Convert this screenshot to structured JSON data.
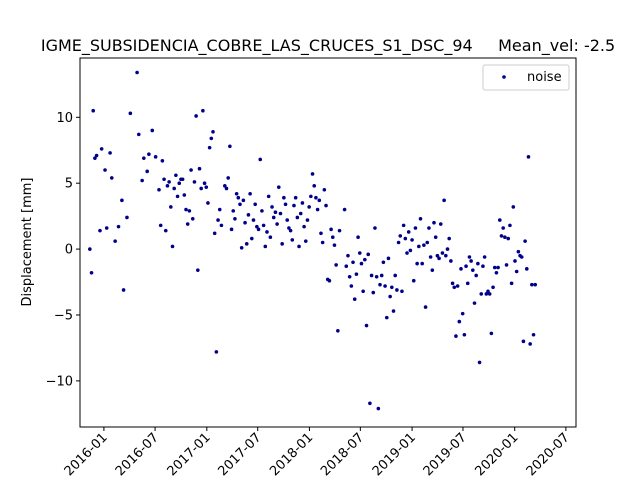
{
  "chart_data": {
    "type": "scatter",
    "title": "IGME_SUBSIDENCIA_COBRE_LAS_CRUCES_S1_DSC_94     Mean_vel: -2.5",
    "xlabel": "",
    "ylabel": "Displacement [mm]",
    "ylim": [
      -13.5,
      14.5
    ],
    "xlim": [
      "2015-10-08",
      "2020-08-06"
    ],
    "grid": false,
    "legend_position": "top-right",
    "yticks": [
      -10,
      -5,
      0,
      5,
      10
    ],
    "xticks": [
      "2016-01",
      "2016-07",
      "2017-01",
      "2017-07",
      "2018-01",
      "2018-07",
      "2019-01",
      "2019-07",
      "2020-01",
      "2020-07"
    ],
    "series": [
      {
        "name": "noise",
        "color": "#00008b",
        "points": [
          [
            "2015-11-12",
            0.0
          ],
          [
            "2015-11-18",
            -1.8
          ],
          [
            "2015-11-24",
            10.5
          ],
          [
            "2015-11-30",
            6.9
          ],
          [
            "2015-12-06",
            7.1
          ],
          [
            "2015-12-18",
            1.4
          ],
          [
            "2015-12-24",
            7.6
          ],
          [
            "2016-01-05",
            6.0
          ],
          [
            "2016-01-11",
            1.6
          ],
          [
            "2016-01-23",
            7.3
          ],
          [
            "2016-01-29",
            5.4
          ],
          [
            "2016-02-10",
            0.6
          ],
          [
            "2016-02-22",
            1.7
          ],
          [
            "2016-03-05",
            3.7
          ],
          [
            "2016-03-11",
            -3.1
          ],
          [
            "2016-03-23",
            2.4
          ],
          [
            "2016-04-04",
            10.3
          ],
          [
            "2016-04-28",
            13.4
          ],
          [
            "2016-05-04",
            8.7
          ],
          [
            "2016-05-16",
            5.2
          ],
          [
            "2016-05-22",
            6.9
          ],
          [
            "2016-06-03",
            5.9
          ],
          [
            "2016-06-09",
            7.2
          ],
          [
            "2016-06-21",
            9.0
          ],
          [
            "2016-07-03",
            7.0
          ],
          [
            "2016-07-15",
            4.5
          ],
          [
            "2016-07-21",
            1.8
          ],
          [
            "2016-07-27",
            6.7
          ],
          [
            "2016-08-02",
            5.3
          ],
          [
            "2016-08-08",
            1.4
          ],
          [
            "2016-08-14",
            4.8
          ],
          [
            "2016-08-20",
            5.1
          ],
          [
            "2016-08-26",
            3.2
          ],
          [
            "2016-09-01",
            0.2
          ],
          [
            "2016-09-07",
            4.6
          ],
          [
            "2016-09-13",
            5.6
          ],
          [
            "2016-09-19",
            4.0
          ],
          [
            "2016-09-25",
            5.0
          ],
          [
            "2016-10-01",
            5.3
          ],
          [
            "2016-10-07",
            5.3
          ],
          [
            "2016-10-13",
            4.1
          ],
          [
            "2016-10-19",
            3.0
          ],
          [
            "2016-10-25",
            1.9
          ],
          [
            "2016-10-31",
            2.9
          ],
          [
            "2016-11-06",
            6.0
          ],
          [
            "2016-11-12",
            2.3
          ],
          [
            "2016-11-18",
            5.1
          ],
          [
            "2016-11-24",
            10.1
          ],
          [
            "2016-11-30",
            -1.6
          ],
          [
            "2016-12-06",
            6.1
          ],
          [
            "2016-12-12",
            4.6
          ],
          [
            "2016-12-18",
            10.5
          ],
          [
            "2016-12-24",
            5.0
          ],
          [
            "2016-12-30",
            4.7
          ],
          [
            "2017-01-05",
            3.5
          ],
          [
            "2017-01-11",
            7.7
          ],
          [
            "2017-01-17",
            8.4
          ],
          [
            "2017-01-23",
            8.9
          ],
          [
            "2017-01-29",
            1.2
          ],
          [
            "2017-02-04",
            -7.8
          ],
          [
            "2017-02-10",
            2.2
          ],
          [
            "2017-02-16",
            3.0
          ],
          [
            "2017-02-22",
            1.8
          ],
          [
            "2017-03-06",
            4.8
          ],
          [
            "2017-03-12",
            4.6
          ],
          [
            "2017-03-18",
            5.4
          ],
          [
            "2017-03-24",
            7.8
          ],
          [
            "2017-03-30",
            1.5
          ],
          [
            "2017-04-05",
            2.9
          ],
          [
            "2017-04-11",
            2.3
          ],
          [
            "2017-04-17",
            4.2
          ],
          [
            "2017-04-23",
            3.9
          ],
          [
            "2017-04-29",
            3.4
          ],
          [
            "2017-05-05",
            0.1
          ],
          [
            "2017-05-11",
            3.7
          ],
          [
            "2017-05-17",
            2.0
          ],
          [
            "2017-05-23",
            0.4
          ],
          [
            "2017-05-29",
            2.6
          ],
          [
            "2017-06-04",
            4.2
          ],
          [
            "2017-06-10",
            0.8
          ],
          [
            "2017-06-16",
            2.2
          ],
          [
            "2017-06-22",
            3.4
          ],
          [
            "2017-06-28",
            1.7
          ],
          [
            "2017-07-04",
            1.5
          ],
          [
            "2017-07-10",
            6.8
          ],
          [
            "2017-07-16",
            2.9
          ],
          [
            "2017-07-22",
            1.8
          ],
          [
            "2017-07-28",
            0.2
          ],
          [
            "2017-08-03",
            1.3
          ],
          [
            "2017-08-09",
            4.0
          ],
          [
            "2017-08-15",
            0.9
          ],
          [
            "2017-08-21",
            3.2
          ],
          [
            "2017-08-27",
            2.4
          ],
          [
            "2017-09-02",
            2.8
          ],
          [
            "2017-09-08",
            1.9
          ],
          [
            "2017-09-14",
            4.7
          ],
          [
            "2017-09-20",
            2.7
          ],
          [
            "2017-09-26",
            0.4
          ],
          [
            "2017-10-02",
            3.9
          ],
          [
            "2017-10-08",
            3.4
          ],
          [
            "2017-10-14",
            2.2
          ],
          [
            "2017-10-20",
            1.6
          ],
          [
            "2017-10-26",
            1.4
          ],
          [
            "2017-11-01",
            0.7
          ],
          [
            "2017-11-07",
            3.3
          ],
          [
            "2017-11-13",
            3.9
          ],
          [
            "2017-11-19",
            2.4
          ],
          [
            "2017-11-25",
            0.2
          ],
          [
            "2017-12-01",
            2.7
          ],
          [
            "2017-12-07",
            3.5
          ],
          [
            "2017-12-13",
            1.7
          ],
          [
            "2017-12-19",
            0.6
          ],
          [
            "2017-12-25",
            2.2
          ],
          [
            "2017-12-31",
            3.2
          ],
          [
            "2018-01-06",
            4.0
          ],
          [
            "2018-01-12",
            5.7
          ],
          [
            "2018-01-18",
            4.8
          ],
          [
            "2018-01-24",
            3.9
          ],
          [
            "2018-01-30",
            3.0
          ],
          [
            "2018-02-05",
            3.7
          ],
          [
            "2018-02-11",
            1.2
          ],
          [
            "2018-02-17",
            0.5
          ],
          [
            "2018-02-23",
            4.5
          ],
          [
            "2018-03-01",
            3.3
          ],
          [
            "2018-03-07",
            -2.3
          ],
          [
            "2018-03-13",
            -2.4
          ],
          [
            "2018-03-19",
            1.5
          ],
          [
            "2018-03-25",
            0.9
          ],
          [
            "2018-03-31",
            0.3
          ],
          [
            "2018-04-06",
            -1.2
          ],
          [
            "2018-04-12",
            -6.2
          ],
          [
            "2018-04-18",
            1.4
          ],
          [
            "2018-05-06",
            3.0
          ],
          [
            "2018-05-12",
            -1.3
          ],
          [
            "2018-05-18",
            -0.5
          ],
          [
            "2018-05-24",
            -2.1
          ],
          [
            "2018-05-30",
            -2.8
          ],
          [
            "2018-06-05",
            -1.0
          ],
          [
            "2018-06-11",
            -3.8
          ],
          [
            "2018-06-17",
            -1.9
          ],
          [
            "2018-06-23",
            0.9
          ],
          [
            "2018-06-29",
            -0.3
          ],
          [
            "2018-07-05",
            -1.1
          ],
          [
            "2018-07-11",
            -3.2
          ],
          [
            "2018-07-17",
            -0.8
          ],
          [
            "2018-07-23",
            -5.8
          ],
          [
            "2018-07-29",
            -0.4
          ],
          [
            "2018-08-04",
            -11.7
          ],
          [
            "2018-08-10",
            -2.0
          ],
          [
            "2018-08-16",
            -3.3
          ],
          [
            "2018-08-22",
            1.6
          ],
          [
            "2018-08-28",
            -2.1
          ],
          [
            "2018-09-03",
            -12.1
          ],
          [
            "2018-09-09",
            -2.7
          ],
          [
            "2018-09-15",
            -2.0
          ],
          [
            "2018-09-21",
            -1.0
          ],
          [
            "2018-09-27",
            -2.8
          ],
          [
            "2018-10-03",
            -5.2
          ],
          [
            "2018-10-09",
            -0.7
          ],
          [
            "2018-10-15",
            -3.6
          ],
          [
            "2018-10-21",
            -2.9
          ],
          [
            "2018-10-27",
            -4.7
          ],
          [
            "2018-11-02",
            -2.0
          ],
          [
            "2018-11-08",
            -3.1
          ],
          [
            "2018-11-14",
            0.5
          ],
          [
            "2018-11-20",
            1.0
          ],
          [
            "2018-11-26",
            -3.2
          ],
          [
            "2018-12-02",
            1.8
          ],
          [
            "2018-12-08",
            0.8
          ],
          [
            "2018-12-14",
            -0.3
          ],
          [
            "2018-12-20",
            1.3
          ],
          [
            "2018-12-26",
            -0.1
          ],
          [
            "2019-01-01",
            0.7
          ],
          [
            "2019-01-07",
            -2.4
          ],
          [
            "2019-01-13",
            1.6
          ],
          [
            "2019-01-19",
            -1.1
          ],
          [
            "2019-01-25",
            0.2
          ],
          [
            "2019-01-31",
            2.3
          ],
          [
            "2019-02-06",
            -1.1
          ],
          [
            "2019-02-12",
            0.3
          ],
          [
            "2019-02-18",
            -4.4
          ],
          [
            "2019-02-24",
            0.5
          ],
          [
            "2019-03-02",
            1.6
          ],
          [
            "2019-03-08",
            -0.6
          ],
          [
            "2019-03-14",
            -1.6
          ],
          [
            "2019-03-20",
            2.0
          ],
          [
            "2019-03-26",
            0.9
          ],
          [
            "2019-04-01",
            -0.5
          ],
          [
            "2019-04-07",
            -0.7
          ],
          [
            "2019-04-13",
            1.9
          ],
          [
            "2019-04-19",
            -0.3
          ],
          [
            "2019-04-25",
            3.7
          ],
          [
            "2019-05-01",
            -0.5
          ],
          [
            "2019-05-07",
            0.0
          ],
          [
            "2019-05-13",
            0.8
          ],
          [
            "2019-05-19",
            -0.9
          ],
          [
            "2019-05-25",
            -2.6
          ],
          [
            "2019-05-31",
            -2.9
          ],
          [
            "2019-06-06",
            -6.6
          ],
          [
            "2019-06-12",
            -2.8
          ],
          [
            "2019-06-18",
            -5.5
          ],
          [
            "2019-06-24",
            -1.5
          ],
          [
            "2019-06-30",
            -4.9
          ],
          [
            "2019-07-06",
            -6.5
          ],
          [
            "2019-07-12",
            -1.3
          ],
          [
            "2019-07-18",
            -2.6
          ],
          [
            "2019-07-24",
            -0.6
          ],
          [
            "2019-07-30",
            -0.9
          ],
          [
            "2019-08-05",
            -1.6
          ],
          [
            "2019-08-11",
            -4.1
          ],
          [
            "2019-08-17",
            -2.0
          ],
          [
            "2019-08-23",
            -1.1
          ],
          [
            "2019-08-29",
            -8.6
          ],
          [
            "2019-09-04",
            -3.4
          ],
          [
            "2019-09-10",
            -1.3
          ],
          [
            "2019-09-16",
            -0.6
          ],
          [
            "2019-09-22",
            -3.4
          ],
          [
            "2019-09-28",
            -3.2
          ],
          [
            "2019-10-04",
            -3.4
          ],
          [
            "2019-10-10",
            -6.4
          ],
          [
            "2019-10-16",
            -2.9
          ],
          [
            "2019-10-22",
            -1.4
          ],
          [
            "2019-10-28",
            -1.8
          ],
          [
            "2019-11-03",
            -1.4
          ],
          [
            "2019-11-09",
            2.2
          ],
          [
            "2019-11-15",
            1.0
          ],
          [
            "2019-11-21",
            1.6
          ],
          [
            "2019-11-27",
            0.9
          ],
          [
            "2019-12-03",
            -1.2
          ],
          [
            "2019-12-09",
            0.8
          ],
          [
            "2019-12-15",
            1.8
          ],
          [
            "2019-12-21",
            -2.6
          ],
          [
            "2019-12-27",
            3.2
          ],
          [
            "2020-01-02",
            -0.9
          ],
          [
            "2020-01-08",
            -1.7
          ],
          [
            "2020-01-14",
            -0.2
          ],
          [
            "2020-01-20",
            -0.5
          ],
          [
            "2020-01-26",
            -0.6
          ],
          [
            "2020-02-01",
            -7.0
          ],
          [
            "2020-02-07",
            0.6
          ],
          [
            "2020-02-13",
            -1.5
          ],
          [
            "2020-02-19",
            7.0
          ],
          [
            "2020-02-25",
            -7.2
          ],
          [
            "2020-03-02",
            -2.7
          ],
          [
            "2020-03-08",
            -6.5
          ],
          [
            "2020-03-14",
            -2.7
          ]
        ]
      }
    ]
  }
}
